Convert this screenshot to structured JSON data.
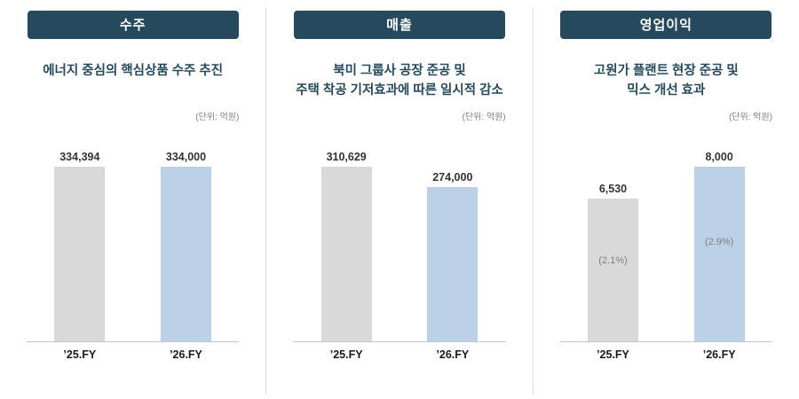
{
  "colors": {
    "navy": "#26495D",
    "bar_gray": "#D9D9D9",
    "bar_blue": "#BCD1E8",
    "note_text": "#808080"
  },
  "panels": [
    {
      "title": "수주",
      "subtitle": "에너지 중심의 핵심상품 수주 추진",
      "unit": "(단위: 억원)",
      "bars": [
        {
          "category": "’25.FY",
          "value": 334394,
          "value_label": "334,394",
          "color": "bar_gray"
        },
        {
          "category": "’26.FY",
          "value": 334000,
          "value_label": "334,000",
          "color": "bar_blue"
        }
      ]
    },
    {
      "title": "매출",
      "subtitle": "북미 그룹사 공장 준공 및\n주택 착공 기저효과에 따른 일시적 감소",
      "unit": "(단위: 억원)",
      "bars": [
        {
          "category": "’25.FY",
          "value": 310629,
          "value_label": "310,629",
          "color": "bar_gray"
        },
        {
          "category": "’26.FY",
          "value": 274000,
          "value_label": "274,000",
          "color": "bar_blue"
        }
      ]
    },
    {
      "title": "영업이익",
      "subtitle": "고원가 플랜트 현장 준공 및\n믹스 개선 효과",
      "unit": "(단위: 억원)",
      "bars": [
        {
          "category": "’25.FY",
          "value": 6530,
          "value_label": "6,530",
          "color": "bar_gray",
          "note": "(2.1%)"
        },
        {
          "category": "’26.FY",
          "value": 8000,
          "value_label": "8,000",
          "color": "bar_blue",
          "note": "(2.9%)"
        }
      ]
    }
  ],
  "chart_data": [
    {
      "type": "bar",
      "title": "수주",
      "subtitle": "에너지 중심의 핵심상품 수주 추진",
      "categories": [
        "’25.FY",
        "’26.FY"
      ],
      "values": [
        334394,
        334000
      ],
      "unit": "(단위: 억원)",
      "bar_colors": [
        "#D9D9D9",
        "#BCD1E8"
      ],
      "grid": false,
      "legend": "none"
    },
    {
      "type": "bar",
      "title": "매출",
      "subtitle": "북미 그룹사 공장 준공 및 주택 착공 기저효과에 따른 일시적 감소",
      "categories": [
        "’25.FY",
        "’26.FY"
      ],
      "values": [
        310629,
        274000
      ],
      "unit": "(단위: 억원)",
      "bar_colors": [
        "#D9D9D9",
        "#BCD1E8"
      ],
      "grid": false,
      "legend": "none"
    },
    {
      "type": "bar",
      "title": "영업이익",
      "subtitle": "고원가 플랜트 현장 준공 및 믹스 개선 효과",
      "categories": [
        "’25.FY",
        "’26.FY"
      ],
      "values": [
        6530,
        8000
      ],
      "annotations": [
        "(2.1%)",
        "(2.9%)"
      ],
      "unit": "(단위: 억원)",
      "bar_colors": [
        "#D9D9D9",
        "#BCD1E8"
      ],
      "grid": false,
      "legend": "none"
    }
  ]
}
